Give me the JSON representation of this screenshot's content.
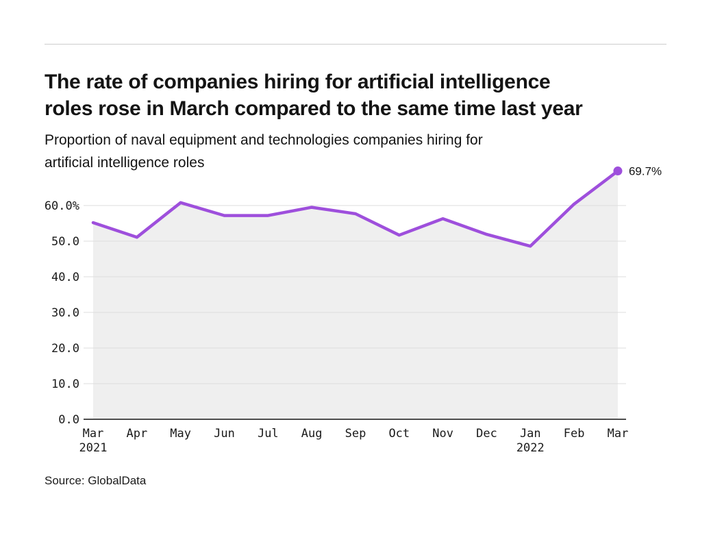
{
  "page": {
    "title": "The rate of companies hiring for artificial intelligence\nroles rose in March compared to the same time last year",
    "subtitle": "Proportion of naval equipment and technologies companies hiring for\nartificial intelligence roles",
    "source": "Source: GlobalData"
  },
  "colors": {
    "line": "#9e4fdc",
    "area_fill": "#efefef",
    "grid": "#dddddd",
    "axis": "#4d4d4d",
    "text": "#1a1a1a"
  },
  "chart_data": {
    "type": "line",
    "title": "The rate of companies hiring for artificial intelligence roles rose in March compared to the same time last year",
    "subtitle": "Proportion of naval equipment and technologies companies hiring for artificial intelligence roles",
    "categories": [
      "Mar 2021",
      "Apr",
      "May",
      "Jun",
      "Jul",
      "Aug",
      "Sep",
      "Oct",
      "Nov",
      "Dec",
      "Jan 2022",
      "Feb",
      "Mar"
    ],
    "month_labels": [
      "Mar",
      "Apr",
      "May",
      "Jun",
      "Jul",
      "Aug",
      "Sep",
      "Oct",
      "Nov",
      "Dec",
      "Jan",
      "Feb",
      "Mar"
    ],
    "year_labels": [
      {
        "index": 0,
        "label": "2021"
      },
      {
        "index": 10,
        "label": "2022"
      }
    ],
    "series": [
      {
        "name": "Proportion of companies hiring for AI roles",
        "values": [
          55.2,
          51.1,
          60.8,
          57.2,
          57.2,
          59.5,
          57.7,
          51.7,
          56.3,
          51.9,
          48.6,
          60.4,
          69.7
        ]
      }
    ],
    "unit": "%",
    "xlabel": "",
    "ylabel": "",
    "ylim": [
      0,
      70
    ],
    "yticks": [
      0,
      10,
      20,
      30,
      40,
      50,
      60
    ],
    "ytick_labels": [
      "0.0",
      "10.0",
      "20.0",
      "30.0",
      "40.0",
      "50.0",
      "60.0%"
    ],
    "grid": "horizontal",
    "legend": "none",
    "area_filled": true,
    "last_point_annotation": "69.7%"
  }
}
